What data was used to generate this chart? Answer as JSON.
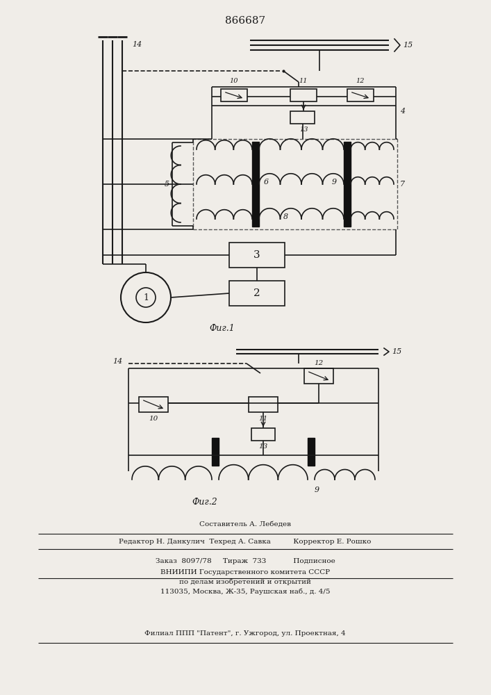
{
  "title": "866687",
  "fig1_caption": "Фиг.1",
  "fig2_caption": "Фиг.2",
  "bg_color": "#f0ede8",
  "line_color": "#1a1a1a",
  "footer_lines": [
    "Составитель А. Лебедев",
    "Редактор Н. Данкулич  Техред А. Савка          Корректор Е. Рошко",
    "Заказ  8097/78     Тираж  733            Подписное",
    "ВНИИПИ Государственного комитета СССР",
    "по делам изобретений и открытий",
    "113035, Москва, Ж-35, Раушская наб., д. 4/5",
    "Филиал ППП \"Патент\", г. Ужгород, ул. Проектная, 4"
  ]
}
